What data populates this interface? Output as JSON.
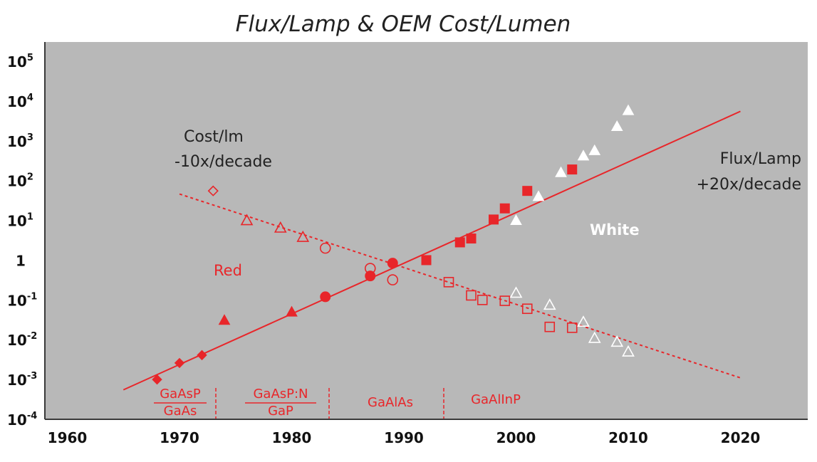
{
  "chart_data": {
    "type": "scatter",
    "title": "Flux/Lamp & OEM Cost/Lumen",
    "xlim": [
      1958,
      2026
    ],
    "ylim_exponent": [
      -4,
      5
    ],
    "y_scale": "log",
    "x_ticks": [
      "1960",
      "1970",
      "1980",
      "1990",
      "2000",
      "2010",
      "2020"
    ],
    "y_ticks": [
      {
        "base": "10",
        "exp": "5"
      },
      {
        "base": "10",
        "exp": "4"
      },
      {
        "base": "10",
        "exp": "3"
      },
      {
        "base": "10",
        "exp": "2"
      },
      {
        "base": "10",
        "exp": "1"
      },
      {
        "base": "1",
        "exp": ""
      },
      {
        "base": "10",
        "exp": "-1"
      },
      {
        "base": "10",
        "exp": "-2"
      },
      {
        "base": "10",
        "exp": "-3"
      },
      {
        "base": "10",
        "exp": "-4"
      }
    ],
    "grid": false,
    "background": "#b8b8b8",
    "colors": {
      "red": "#e8262a",
      "white": "#ffffff",
      "axis": "#3a3a3a"
    },
    "trend_lines": [
      {
        "label": "Flux/Lamp +20x/decade",
        "style": "solid",
        "from": [
          1965,
          0.00055
        ],
        "to": [
          2020,
          5500
        ]
      },
      {
        "label": "Cost/lm -10x/decade",
        "style": "dashed",
        "from": [
          1970,
          46
        ],
        "to": [
          2020,
          0.0011
        ]
      }
    ],
    "flux_points": [
      {
        "marker": "diamond",
        "fill": "red",
        "x": 1968,
        "y": 0.001
      },
      {
        "marker": "diamond",
        "fill": "red",
        "x": 1970,
        "y": 0.0026
      },
      {
        "marker": "diamond",
        "fill": "red",
        "x": 1972,
        "y": 0.0041
      },
      {
        "marker": "triangle",
        "fill": "red",
        "x": 1974,
        "y": 0.031
      },
      {
        "marker": "triangle",
        "fill": "red",
        "x": 1980,
        "y": 0.05
      },
      {
        "marker": "circle",
        "fill": "red",
        "x": 1983,
        "y": 0.12
      },
      {
        "marker": "circle",
        "fill": "red",
        "x": 1987,
        "y": 0.4
      },
      {
        "marker": "circle",
        "fill": "red",
        "x": 1989,
        "y": 0.84
      },
      {
        "marker": "square",
        "fill": "red",
        "x": 1992,
        "y": 1.0
      },
      {
        "marker": "square",
        "fill": "red",
        "x": 1995,
        "y": 2.8
      },
      {
        "marker": "square",
        "fill": "red",
        "x": 1996,
        "y": 3.5
      },
      {
        "marker": "square",
        "fill": "red",
        "x": 1998,
        "y": 10.5
      },
      {
        "marker": "square",
        "fill": "red",
        "x": 1999,
        "y": 20
      },
      {
        "marker": "square",
        "fill": "red",
        "x": 2001,
        "y": 55
      },
      {
        "marker": "square",
        "fill": "red",
        "x": 2005,
        "y": 190
      },
      {
        "marker": "triangle",
        "fill": "white",
        "x": 2000,
        "y": 10
      },
      {
        "marker": "triangle",
        "fill": "white",
        "x": 2002,
        "y": 40
      },
      {
        "marker": "triangle",
        "fill": "white",
        "x": 2004,
        "y": 160
      },
      {
        "marker": "triangle",
        "fill": "white",
        "x": 2006,
        "y": 420
      },
      {
        "marker": "triangle",
        "fill": "white",
        "x": 2007,
        "y": 570
      },
      {
        "marker": "triangle",
        "fill": "white",
        "x": 2009,
        "y": 2300
      },
      {
        "marker": "triangle",
        "fill": "white",
        "x": 2010,
        "y": 5800
      }
    ],
    "cost_points": [
      {
        "marker": "diamond",
        "stroke": "red",
        "x": 1973,
        "y": 55
      },
      {
        "marker": "triangle",
        "stroke": "red",
        "x": 1976,
        "y": 10
      },
      {
        "marker": "triangle",
        "stroke": "red",
        "x": 1979,
        "y": 6.5
      },
      {
        "marker": "triangle",
        "stroke": "red",
        "x": 1981,
        "y": 3.8
      },
      {
        "marker": "circle",
        "stroke": "red",
        "x": 1983,
        "y": 2.0
      },
      {
        "marker": "circle",
        "stroke": "red",
        "x": 1987,
        "y": 0.62
      },
      {
        "marker": "circle",
        "stroke": "red",
        "x": 1989,
        "y": 0.32
      },
      {
        "marker": "square",
        "stroke": "red",
        "x": 1994,
        "y": 0.28
      },
      {
        "marker": "square",
        "stroke": "red",
        "x": 1996,
        "y": 0.13
      },
      {
        "marker": "square",
        "stroke": "red",
        "x": 1997,
        "y": 0.1
      },
      {
        "marker": "square",
        "stroke": "red",
        "x": 1999,
        "y": 0.095
      },
      {
        "marker": "square",
        "stroke": "red",
        "x": 2001,
        "y": 0.06
      },
      {
        "marker": "square",
        "stroke": "red",
        "x": 2003,
        "y": 0.021
      },
      {
        "marker": "square",
        "stroke": "red",
        "x": 2005,
        "y": 0.02
      },
      {
        "marker": "triangle",
        "stroke": "white",
        "x": 2000,
        "y": 0.15
      },
      {
        "marker": "triangle",
        "stroke": "white",
        "x": 2003,
        "y": 0.075
      },
      {
        "marker": "triangle",
        "stroke": "white",
        "x": 2006,
        "y": 0.028
      },
      {
        "marker": "triangle",
        "stroke": "white",
        "x": 2007,
        "y": 0.011
      },
      {
        "marker": "triangle",
        "stroke": "white",
        "x": 2009,
        "y": 0.0088
      },
      {
        "marker": "triangle",
        "stroke": "white",
        "x": 2010,
        "y": 0.005
      }
    ],
    "annotations": {
      "cost_line1": "Cost/lm",
      "cost_line2": "-10x/decade",
      "flux_line1": "Flux/Lamp",
      "flux_line2": "+20x/decade",
      "red": "Red",
      "white": "White"
    },
    "eras": [
      {
        "id": "gaasp",
        "numerator": "GaAsP",
        "denominator": "GaAs"
      },
      {
        "id": "gaaspn",
        "numerator": "GaAsP:N",
        "denominator": "GaP"
      },
      {
        "id": "gaalas",
        "label": "GaAlAs"
      },
      {
        "id": "gaalinp",
        "label": "GaAlInP"
      }
    ]
  }
}
